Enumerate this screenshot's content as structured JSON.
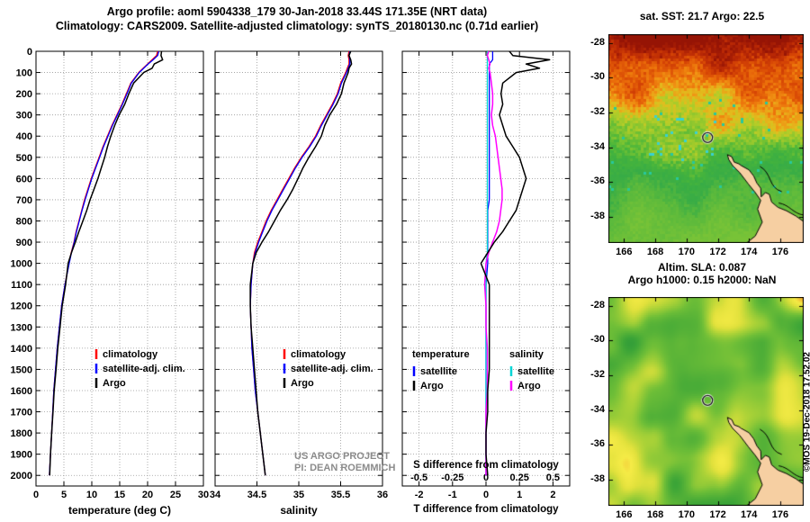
{
  "title_line1": "Argo profile: aoml 5904338_179 30-Jan-2018 33.44S 171.35E (NRT data)",
  "title_line2": "Climatology: CARS2009. Satellite-adjusted climatology: synTS_20180130.nc (0.71d earlier)",
  "watermark": "©MOS 19-Dec-2018 17.52.02",
  "project": {
    "line1": "US ARGO PROJECT",
    "line2": "PI: DEAN ROEMMICH"
  },
  "colors": {
    "climatology": "#ff0000",
    "satellite": "#0000ff",
    "argo": "#000000",
    "salinity_satellite": "#00d5d5",
    "salinity_argo": "#ff00ff",
    "land": "#f6cfa2",
    "coast": "#000000",
    "grid": "#999999"
  },
  "chart_data": [
    {
      "type": "line",
      "panel": "temperature-profile",
      "xlabel": "temperature (deg C)",
      "xlim": [
        0,
        30
      ],
      "xticks": [
        0,
        5,
        10,
        15,
        20,
        25,
        30
      ],
      "ylim": [
        0,
        2050
      ],
      "yticks": [
        0,
        100,
        200,
        300,
        400,
        500,
        600,
        700,
        800,
        900,
        1000,
        1100,
        1200,
        1300,
        1400,
        1500,
        1600,
        1700,
        1800,
        1900,
        2000
      ],
      "depths": [
        0,
        20,
        40,
        60,
        80,
        100,
        150,
        200,
        250,
        300,
        350,
        400,
        450,
        500,
        550,
        600,
        650,
        700,
        750,
        800,
        850,
        900,
        950,
        1000,
        1100,
        1200,
        1300,
        1400,
        1500,
        1600,
        1700,
        1800,
        1900,
        2000
      ],
      "series": [
        {
          "name": "climatology",
          "color": "#ff0000",
          "values": [
            21.8,
            21.6,
            20.8,
            20.0,
            19.2,
            18.4,
            17.0,
            16.2,
            15.4,
            14.5,
            13.6,
            12.8,
            12.0,
            11.3,
            10.6,
            9.9,
            9.3,
            8.7,
            8.2,
            7.7,
            7.2,
            6.8,
            6.3,
            5.9,
            5.2,
            4.6,
            4.2,
            3.8,
            3.5,
            3.2,
            3.0,
            2.8,
            2.6,
            2.4
          ]
        },
        {
          "name": "satellite-adj. clim.",
          "color": "#0000ff",
          "values": [
            22.0,
            21.8,
            21.0,
            20.1,
            19.3,
            18.5,
            17.1,
            16.3,
            15.5,
            14.6,
            13.7,
            12.9,
            12.1,
            11.4,
            10.7,
            10.0,
            9.4,
            8.8,
            8.25,
            7.75,
            7.25,
            6.85,
            6.35,
            5.95,
            5.2,
            4.6,
            4.2,
            3.8,
            3.5,
            3.2,
            3.0,
            2.8,
            2.6,
            2.4
          ]
        },
        {
          "name": "Argo",
          "color": "#000000",
          "values": [
            22.5,
            22.4,
            22.7,
            21.2,
            20.8,
            19.3,
            17.5,
            16.65,
            15.9,
            14.9,
            14.1,
            13.4,
            12.8,
            12.3,
            11.7,
            11.1,
            10.4,
            9.7,
            9.1,
            8.4,
            7.7,
            7.05,
            6.35,
            5.75,
            5.3,
            4.7,
            4.3,
            3.9,
            3.6,
            3.25,
            3.05,
            2.8,
            2.6,
            2.45
          ]
        }
      ]
    },
    {
      "type": "line",
      "panel": "salinity-profile",
      "xlabel": "salinity",
      "xlim": [
        34,
        36
      ],
      "xticks": [
        34,
        34.5,
        35,
        35.5,
        36
      ],
      "ylim": [
        0,
        2050
      ],
      "yticks": [
        0,
        100,
        200,
        300,
        400,
        500,
        600,
        700,
        800,
        900,
        1000,
        1100,
        1200,
        1300,
        1400,
        1500,
        1600,
        1700,
        1800,
        1900,
        2000
      ],
      "depths": [
        0,
        20,
        40,
        60,
        80,
        100,
        150,
        200,
        250,
        300,
        350,
        400,
        450,
        500,
        550,
        600,
        650,
        700,
        750,
        800,
        850,
        900,
        950,
        1000,
        1100,
        1200,
        1300,
        1400,
        1500,
        1600,
        1700,
        1800,
        1900,
        2000
      ],
      "series": [
        {
          "name": "climatology",
          "color": "#ff0000",
          "values": [
            35.6,
            35.59,
            35.6,
            35.6,
            35.58,
            35.56,
            35.5,
            35.46,
            35.4,
            35.33,
            35.26,
            35.2,
            35.12,
            35.03,
            34.95,
            34.88,
            34.81,
            34.74,
            34.67,
            34.61,
            34.56,
            34.51,
            34.47,
            34.45,
            34.43,
            34.42,
            34.43,
            34.44,
            34.46,
            34.48,
            34.51,
            34.54,
            34.57,
            34.6
          ]
        },
        {
          "name": "satellite-adj. clim.",
          "color": "#0000ff",
          "values": [
            35.61,
            35.6,
            35.61,
            35.61,
            35.59,
            35.57,
            35.51,
            35.47,
            35.41,
            35.34,
            35.27,
            35.21,
            35.13,
            35.04,
            34.96,
            34.89,
            34.82,
            34.75,
            34.68,
            34.62,
            34.57,
            34.52,
            34.48,
            34.45,
            34.43,
            34.42,
            34.43,
            34.44,
            34.46,
            34.48,
            34.51,
            34.54,
            34.57,
            34.6
          ]
        },
        {
          "name": "Argo",
          "color": "#000000",
          "values": [
            35.62,
            35.6,
            35.62,
            35.63,
            35.6,
            35.59,
            35.54,
            35.51,
            35.45,
            35.37,
            35.31,
            35.27,
            35.2,
            35.12,
            35.05,
            34.99,
            34.93,
            34.86,
            34.78,
            34.71,
            34.64,
            34.56,
            34.49,
            34.45,
            34.42,
            34.42,
            34.43,
            34.45,
            34.47,
            34.49,
            34.51,
            34.54,
            34.57,
            34.6
          ]
        }
      ]
    },
    {
      "type": "line",
      "panel": "difference-from-climatology",
      "top_axis": {
        "label": "S difference from climatology",
        "lim": [
          -0.625,
          0.625
        ],
        "ticks": [
          -0.5,
          -0.25,
          0,
          0.25,
          0.5
        ]
      },
      "bottom_axis": {
        "label": "T difference from climatology",
        "lim": [
          -2.5,
          2.5
        ],
        "ticks": [
          -2,
          -1,
          0,
          1,
          2
        ]
      },
      "ylim": [
        0,
        2050
      ],
      "yticks": [
        0,
        100,
        200,
        300,
        400,
        500,
        600,
        700,
        800,
        900,
        1000,
        1100,
        1200,
        1300,
        1400,
        1500,
        1600,
        1700,
        1800,
        1900,
        2000
      ],
      "groups": [
        "temperature",
        "salinity"
      ],
      "depths": [
        0,
        20,
        40,
        60,
        80,
        100,
        150,
        200,
        250,
        300,
        350,
        400,
        450,
        500,
        550,
        600,
        650,
        700,
        750,
        800,
        850,
        900,
        950,
        1000,
        1100,
        1200,
        1300,
        1400,
        1500,
        1600,
        1700,
        1800,
        1900,
        2000
      ],
      "series": [
        {
          "name": "satellite",
          "group": "temperature",
          "axis": "bottom",
          "color": "#0000ff",
          "values": [
            0.2,
            0.2,
            0.2,
            0.1,
            0.1,
            0.1,
            0.1,
            0.1,
            0.1,
            0.1,
            0.1,
            0.1,
            0.1,
            0.1,
            0.1,
            0.1,
            0.1,
            0.1,
            0.05,
            0.05,
            0.05,
            0.05,
            0.05,
            0.05,
            0,
            0,
            0,
            0,
            0,
            0,
            0,
            0,
            0,
            0
          ]
        },
        {
          "name": "Argo",
          "group": "temperature",
          "axis": "bottom",
          "color": "#000000",
          "values": [
            0.7,
            0.8,
            1.9,
            1.2,
            1.6,
            0.9,
            0.5,
            0.45,
            0.5,
            0.4,
            0.5,
            0.6,
            0.8,
            1.0,
            1.1,
            1.2,
            1.1,
            1.0,
            0.9,
            0.7,
            0.5,
            0.25,
            0.05,
            -0.15,
            0.1,
            0.1,
            0.1,
            0.1,
            0.1,
            0.05,
            0.05,
            0.0,
            0.0,
            0.05
          ]
        },
        {
          "name": "satellite",
          "group": "salinity",
          "axis": "top",
          "color": "#00d5d5",
          "values": [
            0.01,
            0.01,
            0.01,
            0.01,
            0.01,
            0.01,
            0.01,
            0.01,
            0.01,
            0.01,
            0.01,
            0.01,
            0.01,
            0.01,
            0.01,
            0.01,
            0.01,
            0.01,
            0.01,
            0.01,
            0.01,
            0.01,
            0.01,
            0,
            0,
            0,
            0,
            0,
            0,
            0,
            0,
            0,
            0,
            0
          ]
        },
        {
          "name": "Argo",
          "group": "salinity",
          "axis": "top",
          "color": "#ff00ff",
          "values": [
            0.02,
            0.01,
            0.02,
            0.03,
            0.02,
            0.03,
            0.04,
            0.05,
            0.05,
            0.04,
            0.05,
            0.07,
            0.08,
            0.09,
            0.1,
            0.11,
            0.12,
            0.12,
            0.11,
            0.1,
            0.08,
            0.05,
            0.02,
            0.0,
            -0.01,
            0.0,
            0.0,
            0.01,
            0.01,
            0.01,
            0.0,
            0.0,
            0.0,
            0.0
          ]
        }
      ]
    },
    {
      "type": "heatmap",
      "panel": "sst-map",
      "title": "sat. SST: 21.7  Argo: 22.5",
      "sat_sst": 21.7,
      "argo_sst": 22.5,
      "xlim": [
        165,
        177.5
      ],
      "ylim": [
        -39.5,
        -27.5
      ],
      "xticks": [
        166,
        168,
        170,
        172,
        174,
        176
      ],
      "yticks": [
        -28,
        -30,
        -32,
        -34,
        -36,
        -38
      ],
      "marker": {
        "lon": 171.35,
        "lat": -33.44
      }
    },
    {
      "type": "heatmap",
      "panel": "sla-map",
      "title1": "Altim. SLA: 0.087",
      "title2": "Argo h1000: 0.15 h2000: NaN",
      "sla": 0.087,
      "h1000": 0.15,
      "h2000": "NaN",
      "xlim": [
        165,
        177.5
      ],
      "ylim": [
        -39.5,
        -27.5
      ],
      "xticks": [
        166,
        168,
        170,
        172,
        174,
        176
      ],
      "yticks": [
        -28,
        -30,
        -32,
        -34,
        -36,
        -38
      ],
      "marker": {
        "lon": 171.35,
        "lat": -33.44
      }
    }
  ]
}
